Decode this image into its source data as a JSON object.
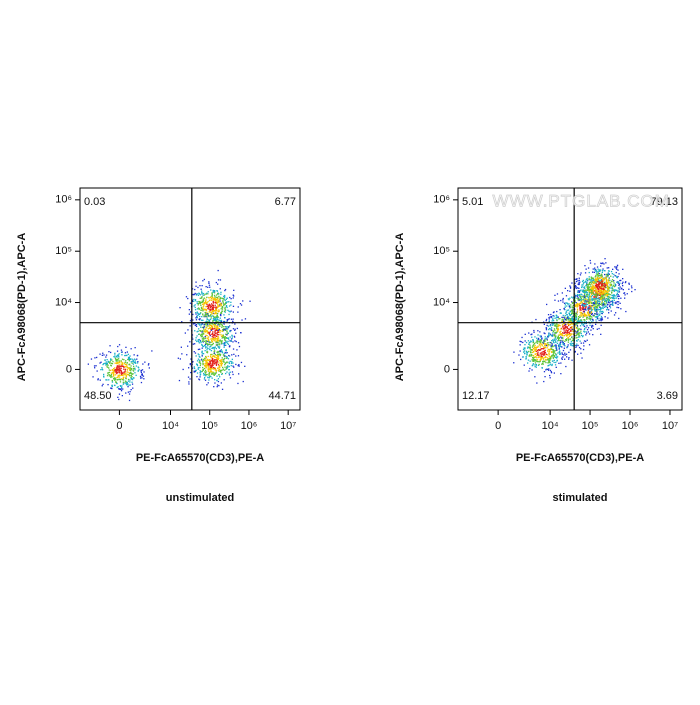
{
  "chart_data": [
    {
      "type": "scatter",
      "scale": "biexponential",
      "xlabel": "PE-FcA65570(CD3),PE-A",
      "ylabel": "APC-FcA98068(PD-1),APC-A",
      "caption": "unstimulated",
      "xlim": [
        -5000,
        20000000
      ],
      "ylim": [
        -3000,
        1700000
      ],
      "xticks": [
        0,
        {
          "value": 10000,
          "label": "10⁴"
        },
        {
          "value": 100000,
          "label": "10⁵"
        },
        {
          "value": 1000000,
          "label": "10⁶"
        },
        {
          "value": 10000000,
          "label": "10⁷"
        }
      ],
      "yticks": [
        0,
        {
          "value": 10000,
          "label": "10⁴"
        },
        {
          "value": 100000,
          "label": "10⁵"
        },
        {
          "value": 1000000,
          "label": "10⁶"
        }
      ],
      "gate": {
        "x": 35000,
        "y": 4000
      },
      "quadrant_labels": [
        "0.03",
        "6.77",
        "48.50",
        "44.71"
      ],
      "clusters": [
        {
          "x": 0,
          "y": 0
        },
        {
          "x": 120000,
          "y": 300
        },
        {
          "x": 120000,
          "y": 2500
        },
        {
          "x": 110000,
          "y": 9000
        }
      ]
    },
    {
      "type": "scatter",
      "scale": "biexponential",
      "xlabel": "PE-FcA65570(CD3),PE-A",
      "ylabel": "APC-FcA98068(PD-1),APC-A",
      "caption": "stimulated",
      "xlim": [
        -5000,
        20000000
      ],
      "ylim": [
        -3000,
        1700000
      ],
      "xticks": [
        0,
        {
          "value": 10000,
          "label": "10⁴"
        },
        {
          "value": 100000,
          "label": "10⁵"
        },
        {
          "value": 1000000,
          "label": "10⁶"
        },
        {
          "value": 10000000,
          "label": "10⁷"
        }
      ],
      "yticks": [
        0,
        {
          "value": 10000,
          "label": "10⁴"
        },
        {
          "value": 100000,
          "label": "10⁵"
        },
        {
          "value": 1000000,
          "label": "10⁶"
        }
      ],
      "gate": {
        "x": 40000,
        "y": 4000
      },
      "quadrant_labels": [
        "5.01",
        "79.13",
        "12.17",
        "3.69"
      ],
      "watermark": "WWW.PTGLAB.COM",
      "clusters": [
        {
          "x": 6000,
          "y": 900
        },
        {
          "x": 25000,
          "y": 3000
        },
        {
          "x": 70000,
          "y": 8000
        },
        {
          "x": 150000,
          "y": 15000
        },
        {
          "x": 180000,
          "y": 22000
        }
      ]
    }
  ]
}
